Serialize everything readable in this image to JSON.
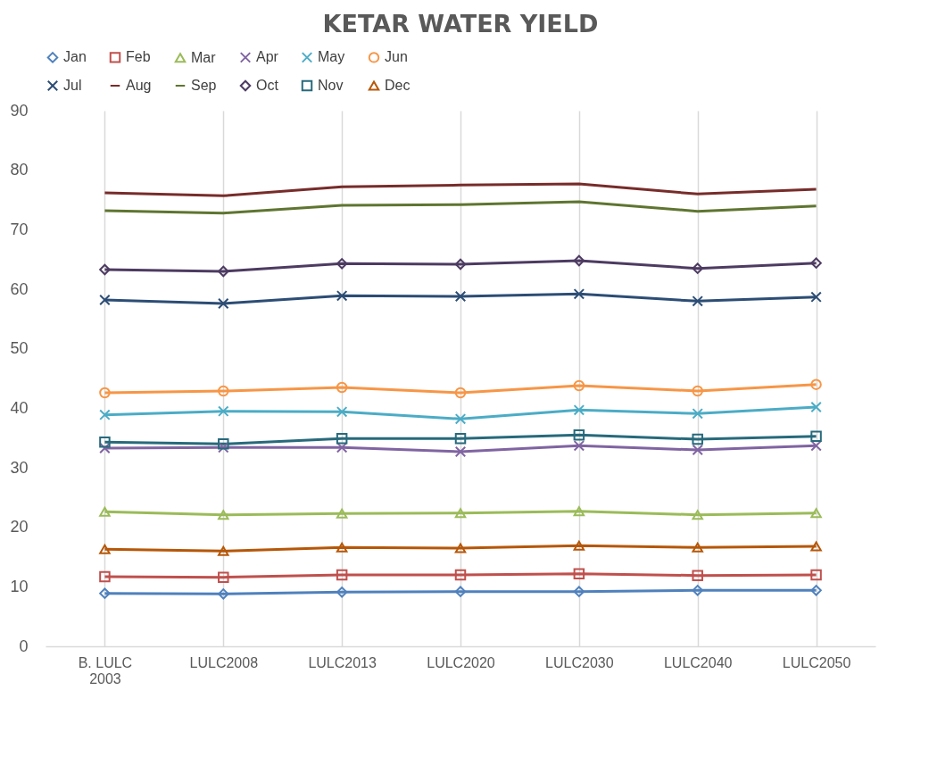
{
  "chart_data": {
    "type": "line",
    "title": "KETAR  WATER  YIELD",
    "categories": [
      "B. LULC 2003",
      "LULC2008",
      "LULC2013",
      "LULC2020",
      "LULC2030",
      "LULC2040",
      "LULC2050"
    ],
    "ylim": [
      0,
      90
    ],
    "yticks": [
      0,
      10,
      20,
      30,
      40,
      50,
      60,
      70,
      80,
      90
    ],
    "grid": "x",
    "legend": "top",
    "series": [
      {
        "name": "Jan",
        "color": "#4f81bd",
        "marker": "diamond",
        "values": [
          8.9,
          8.8,
          9.1,
          9.2,
          9.2,
          9.4,
          9.4
        ]
      },
      {
        "name": "Feb",
        "color": "#c0504d",
        "marker": "square",
        "values": [
          11.7,
          11.6,
          12.0,
          12.0,
          12.2,
          11.9,
          12.0
        ]
      },
      {
        "name": "Mar",
        "color": "#9bbb59",
        "marker": "triangle",
        "values": [
          22.6,
          22.1,
          22.3,
          22.4,
          22.7,
          22.1,
          22.4
        ]
      },
      {
        "name": "Apr",
        "color": "#8064a2",
        "marker": "cross",
        "values": [
          33.3,
          33.4,
          33.4,
          32.7,
          33.7,
          33.0,
          33.7
        ]
      },
      {
        "name": "May",
        "color": "#4bacc6",
        "marker": "cross",
        "values": [
          38.9,
          39.5,
          39.4,
          38.2,
          39.7,
          39.1,
          40.2
        ]
      },
      {
        "name": "Jun",
        "color": "#f79646",
        "marker": "circle",
        "values": [
          42.6,
          42.9,
          43.5,
          42.6,
          43.8,
          42.9,
          44.0
        ]
      },
      {
        "name": "Jul",
        "color": "#2c4d75",
        "marker": "cross",
        "values": [
          58.2,
          57.6,
          58.9,
          58.8,
          59.2,
          58.0,
          58.7
        ]
      },
      {
        "name": "Aug",
        "color": "#772c2a",
        "values": [
          76.2,
          75.7,
          77.2,
          77.5,
          77.7,
          76.0,
          76.8
        ]
      },
      {
        "name": "Sep",
        "color": "#5f7530",
        "values": [
          73.2,
          72.8,
          74.1,
          74.2,
          74.7,
          73.1,
          74.0
        ]
      },
      {
        "name": "Oct",
        "color": "#4d3b62",
        "marker": "diamond",
        "values": [
          63.3,
          63.0,
          64.3,
          64.2,
          64.8,
          63.5,
          64.4
        ]
      },
      {
        "name": "Nov",
        "color": "#276a7c",
        "marker": "square",
        "values": [
          34.3,
          34.0,
          34.9,
          34.9,
          35.5,
          34.8,
          35.3
        ]
      },
      {
        "name": "Dec",
        "color": "#b65708",
        "marker": "triangle",
        "values": [
          16.3,
          16.0,
          16.6,
          16.5,
          16.9,
          16.6,
          16.8
        ]
      }
    ]
  }
}
